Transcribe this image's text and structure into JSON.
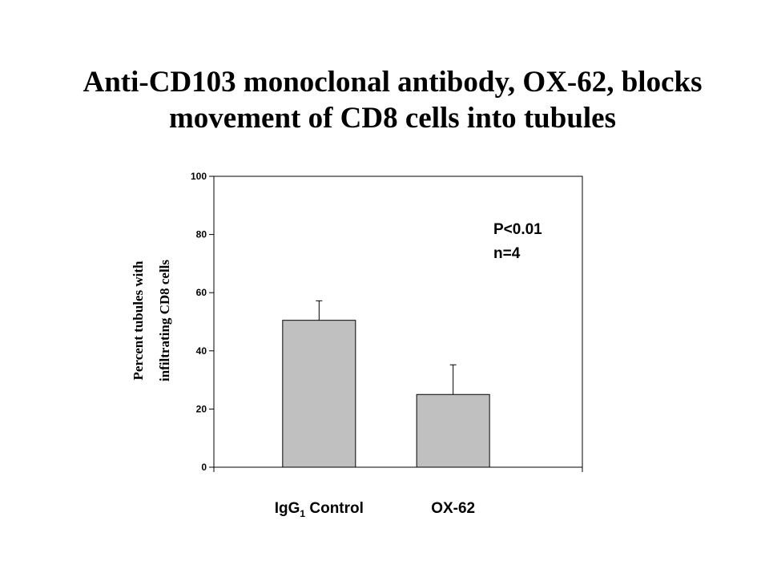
{
  "slide": {
    "title_line1": "Anti-CD103 monoclonal antibody, OX-62, blocks",
    "title_line2": "movement of CD8 cells into tubules"
  },
  "chart_data": {
    "type": "bar",
    "categories": [
      "IgG1 Control",
      "OX-62"
    ],
    "category_label_parts": [
      {
        "main": "IgG",
        "sub": "1",
        "rest": " Control"
      },
      {
        "main": "OX-62",
        "sub": "",
        "rest": ""
      }
    ],
    "values": [
      50.5,
      25.0
    ],
    "error_upper": [
      57.2,
      35.2
    ],
    "ylabel_line1": "Percent tubules with",
    "ylabel_line2": "infiltrating CD8 cells",
    "ylim": [
      0,
      100
    ],
    "yticks": [
      0,
      20,
      40,
      60,
      80,
      100
    ],
    "annotations": [
      "P<0.01",
      "n=4"
    ],
    "grid": false,
    "colors": {
      "bar_fill": "#c0c0c0",
      "axis": "#000000"
    }
  }
}
